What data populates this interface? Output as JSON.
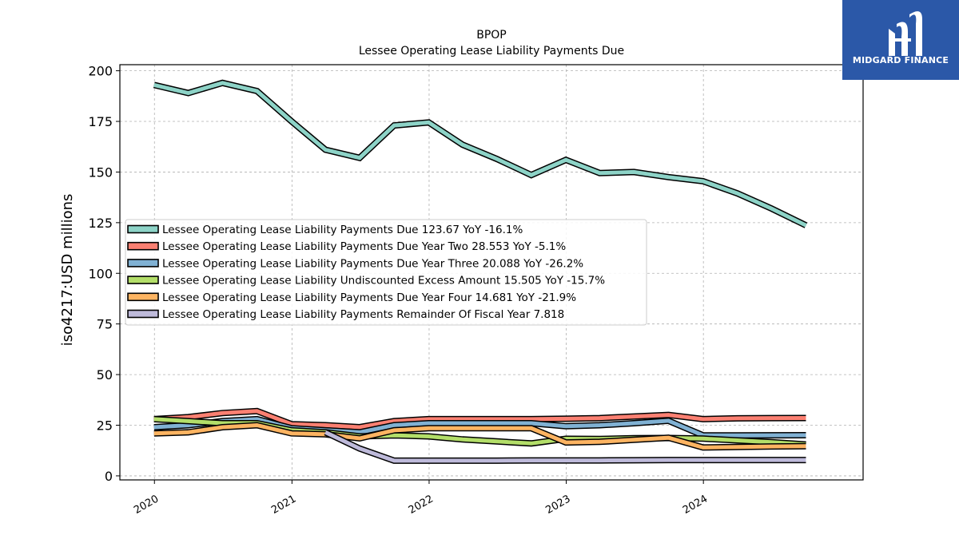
{
  "chart_data": {
    "type": "line",
    "title": "BPOP",
    "subtitle": "Lessee Operating Lease Liability Payments Due",
    "ylabel": "iso4217:USD  millions",
    "xlabel": "",
    "ylim": [
      -2,
      203
    ],
    "xlim": [
      "2019-10-01",
      "2025-03-01"
    ],
    "yticks": [
      0,
      25,
      50,
      75,
      100,
      125,
      150,
      175,
      200
    ],
    "xticks": [
      {
        "label": "2020",
        "date": "2020-01-01"
      },
      {
        "label": "2021",
        "date": "2021-01-01"
      },
      {
        "label": "2022",
        "date": "2022-01-01"
      },
      {
        "label": "2023",
        "date": "2023-01-01"
      },
      {
        "label": "2024",
        "date": "2024-01-01"
      }
    ],
    "grid": true,
    "legend_position": "center-left",
    "series": [
      {
        "name": "Lessee Operating Lease Liability Payments Due",
        "legend_label": "Lessee Operating Lease Liability Payments Due  123.67 YoY -16.1%",
        "color": "#8dd3c7",
        "x": [
          "2019-12-31",
          "2020-03-31",
          "2020-06-30",
          "2020-09-30",
          "2020-12-31",
          "2021-03-31",
          "2021-06-30",
          "2021-09-30",
          "2021-12-31",
          "2022-03-31",
          "2022-06-30",
          "2022-09-30",
          "2022-12-31",
          "2023-03-31",
          "2023-06-30",
          "2023-09-30",
          "2023-12-31",
          "2024-03-31",
          "2024-06-30",
          "2024-09-30"
        ],
        "values": [
          193,
          189,
          194,
          190,
          175,
          161,
          157,
          173,
          174.5,
          163.5,
          156.5,
          148.5,
          156,
          149.5,
          150,
          147.5,
          145.5,
          139.5,
          132,
          123.67
        ]
      },
      {
        "name": "Lessee Operating Lease Liability Payments Due Year Two",
        "legend_label": "Lessee Operating Lease Liability Payments Due Year Two  28.553 YoY -5.1%",
        "color": "#fb8072",
        "x": [
          "2019-12-31",
          "2020-03-31",
          "2020-06-30",
          "2020-09-30",
          "2020-12-31",
          "2021-03-31",
          "2021-06-30",
          "2021-09-30",
          "2021-12-31",
          "2022-03-31",
          "2022-06-30",
          "2022-09-30",
          "2022-12-31",
          "2023-03-31",
          "2023-06-30",
          "2023-09-30",
          "2023-12-31",
          "2024-03-31",
          "2024-06-30",
          "2024-09-30"
        ],
        "values": [
          28,
          29,
          31,
          32,
          25.5,
          25,
          24,
          27,
          28,
          28,
          28,
          28,
          28.2,
          28.5,
          29.3,
          30.1,
          28,
          28.4,
          28.5,
          28.553
        ]
      },
      {
        "name": "Lessee Operating Lease Liability Payments Due Year Three",
        "legend_label": "Lessee Operating Lease Liability Payments Due Year Three  20.088 YoY -26.2%",
        "color": "#80b1d3",
        "x": [
          "2019-12-31",
          "2020-03-31",
          "2020-06-30",
          "2020-09-30",
          "2020-12-31",
          "2021-03-31",
          "2021-06-30",
          "2021-09-30",
          "2021-12-31",
          "2022-03-31",
          "2022-06-30",
          "2022-09-30",
          "2022-12-31",
          "2023-03-31",
          "2023-06-30",
          "2023-09-30",
          "2023-12-31",
          "2024-03-31",
          "2024-06-30",
          "2024-09-30"
        ],
        "values": [
          24,
          25,
          27,
          28,
          23.5,
          22.5,
          21.5,
          25,
          26,
          26,
          26,
          26,
          24.5,
          25,
          26,
          27.2,
          20,
          20,
          20.05,
          20.088
        ]
      },
      {
        "name": "Lessee Operating Lease Liability Undiscounted Excess Amount",
        "legend_label": "Lessee Operating Lease Liability Undiscounted Excess Amount  15.505 YoY -15.7%",
        "color": "#b3de69",
        "x": [
          "2019-12-31",
          "2020-03-31",
          "2020-06-30",
          "2020-09-30",
          "2020-12-31",
          "2021-03-31",
          "2021-06-30",
          "2021-09-30",
          "2021-12-31",
          "2022-03-31",
          "2022-06-30",
          "2022-09-30",
          "2022-12-31",
          "2023-03-31",
          "2023-06-30",
          "2023-09-30",
          "2023-12-31",
          "2024-03-31",
          "2024-06-30",
          "2024-09-30"
        ],
        "values": [
          28,
          27,
          26,
          26,
          22.5,
          21.5,
          19.5,
          20,
          19.5,
          18,
          17,
          16,
          18.3,
          18.2,
          18.6,
          18.7,
          18.4,
          17.5,
          16.6,
          15.505
        ]
      },
      {
        "name": "Lessee Operating Lease Liability Payments Due Year Four",
        "legend_label": "Lessee Operating Lease Liability Payments Due Year Four  14.681 YoY -21.9%",
        "color": "#fdb462",
        "x": [
          "2019-12-31",
          "2020-03-31",
          "2020-06-30",
          "2020-09-30",
          "2020-12-31",
          "2021-03-31",
          "2021-06-30",
          "2021-09-30",
          "2021-12-31",
          "2022-03-31",
          "2022-06-30",
          "2022-09-30",
          "2022-12-31",
          "2023-03-31",
          "2023-06-30",
          "2023-09-30",
          "2023-12-31",
          "2024-03-31",
          "2024-06-30",
          "2024-09-30"
        ],
        "values": [
          21,
          21.5,
          24,
          25,
          21,
          20.5,
          18.5,
          22.5,
          23.5,
          23.5,
          23.5,
          23.5,
          16.5,
          16.8,
          17.8,
          18.8,
          14,
          14.3,
          14.5,
          14.681
        ]
      },
      {
        "name": "Lessee Operating Lease Liability Payments Remainder Of Fiscal Year",
        "legend_label": "Lessee Operating Lease Liability Payments Remainder Of Fiscal Year  7.818",
        "color": "#bebada",
        "x": [
          "2021-03-31",
          "2021-06-30",
          "2021-09-30",
          "2021-12-31",
          "2022-03-31",
          "2022-06-30",
          "2022-09-30",
          "2022-12-31",
          "2023-03-31",
          "2023-06-30",
          "2023-09-30",
          "2023-12-31",
          "2024-03-31",
          "2024-06-30",
          "2024-09-30"
        ],
        "values": [
          21.5,
          13.5,
          7.5,
          7.5,
          7.5,
          7.5,
          7.6,
          7.6,
          7.6,
          7.7,
          7.8,
          7.8,
          7.8,
          7.8,
          7.818
        ]
      }
    ]
  },
  "logo": {
    "text": "MIDGARD FINANCE",
    "background": "#2b58a8"
  }
}
